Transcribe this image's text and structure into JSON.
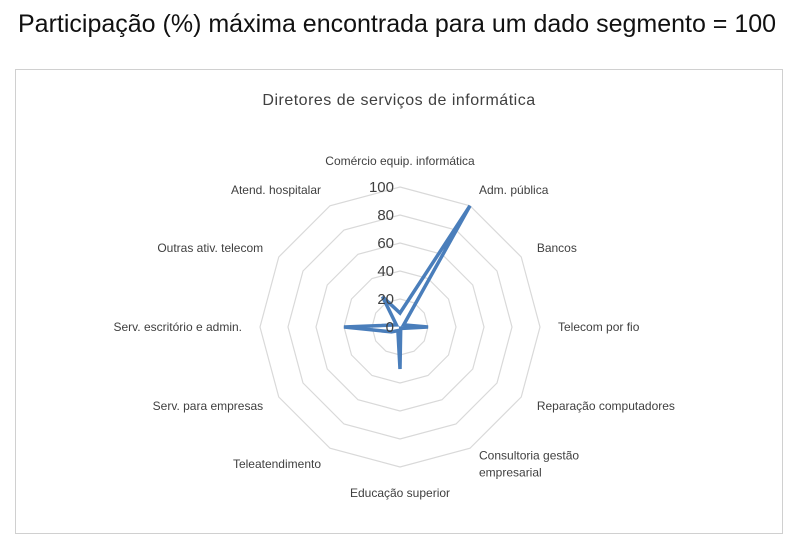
{
  "page": {
    "title": "Participação (%) máxima encontrada para um dado segmento = 100"
  },
  "chart_data": {
    "type": "radar",
    "title": "Diretores de serviços de informática",
    "categories": [
      "Comércio equip. informática",
      "Adm. pública",
      "Bancos",
      "Telecom por fio",
      "Reparação computadores",
      "Consultoria gestão empresarial",
      "Educação superior",
      "Teleatendimento",
      "Serv. para empresas",
      "Serv. escritório e admin.",
      "Outras ativ. telecom",
      "Atend. hospitalar"
    ],
    "category_lines": [
      [
        "Comércio equip. informática"
      ],
      [
        "Adm. pública"
      ],
      [
        "Bancos"
      ],
      [
        "Telecom por fio"
      ],
      [
        "Reparação computadores"
      ],
      [
        "Consultoria gestão",
        "empresarial"
      ],
      [
        "Educação superior"
      ],
      [
        "Teleatendimento"
      ],
      [
        "Serv. para empresas"
      ],
      [
        "Serv. escritório e admin."
      ],
      [
        "Outras ativ. telecom"
      ],
      [
        "Atend. hospitalar"
      ]
    ],
    "series": [
      {
        "values": [
          10,
          100,
          3,
          20,
          2,
          1,
          30,
          3,
          7,
          40,
          3,
          25
        ]
      }
    ],
    "rlim": [
      0,
      100
    ],
    "ticks": [
      0,
      20,
      40,
      60,
      80,
      100
    ],
    "grid": true,
    "legend": "none",
    "colors": {
      "series": "#4a7ebb",
      "grid": "#d9d9d9"
    }
  }
}
